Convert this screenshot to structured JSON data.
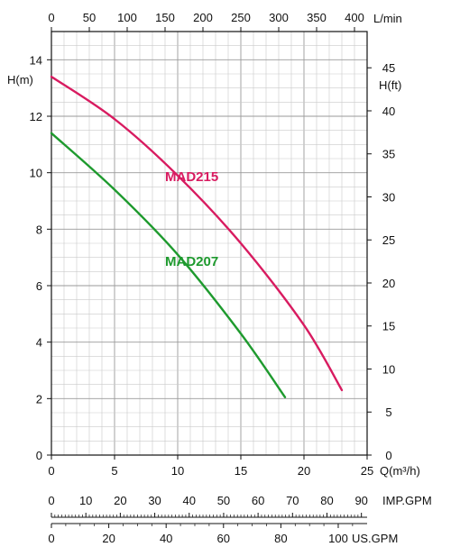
{
  "chart_data": {
    "type": "line",
    "x_unit_label": "Q(m³/h)",
    "y_left_unit_label": "H(m)",
    "y_right_unit_label": "H(ft)",
    "top_unit_label": "L/min",
    "imp_gpm_label": "IMP.GPM",
    "us_gpm_label": "US.GPM",
    "xlim": [
      0,
      25
    ],
    "ylim": [
      0,
      15
    ],
    "x_ticks": [
      "0",
      "5",
      "10",
      "15",
      "20",
      "25"
    ],
    "y_left_ticks": [
      "0",
      "2",
      "4",
      "6",
      "8",
      "10",
      "12",
      "14"
    ],
    "y_right_ticks": [
      "0",
      "5",
      "10",
      "15",
      "20",
      "25",
      "30",
      "35",
      "40",
      "45"
    ],
    "top_ticks": [
      "0",
      "50",
      "100",
      "150",
      "200",
      "250",
      "300",
      "350",
      "400"
    ],
    "imp_gpm_ticks": [
      "0",
      "10",
      "20",
      "30",
      "40",
      "50",
      "60",
      "70",
      "80",
      "90"
    ],
    "us_gpm_ticks": [
      "0",
      "20",
      "40",
      "60",
      "80",
      "100"
    ],
    "grid": true,
    "series": [
      {
        "name": "MAD215",
        "color": "#d81b60",
        "x": [
          0,
          5,
          10,
          15,
          20,
          23
        ],
        "y": [
          13.4,
          11.9,
          9.9,
          7.5,
          4.6,
          2.3
        ]
      },
      {
        "name": "MAD207",
        "color": "#1e9a2e",
        "x": [
          0,
          5,
          10,
          15,
          18.5
        ],
        "y": [
          11.4,
          9.4,
          7.1,
          4.3,
          2.05
        ]
      }
    ]
  }
}
